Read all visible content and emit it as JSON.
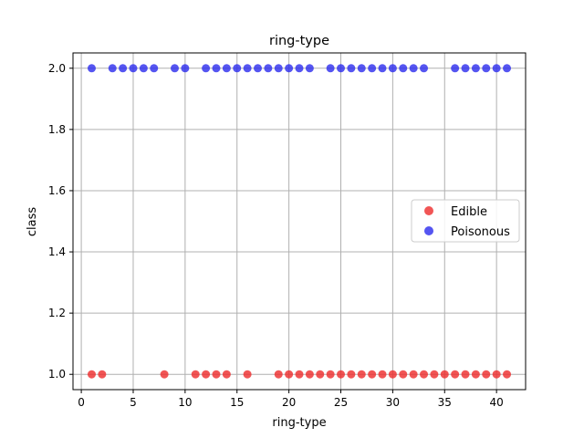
{
  "chart_data": {
    "type": "scatter",
    "title": "ring-type",
    "xlabel": "ring-type",
    "ylabel": "class",
    "xlim": [
      -0.8,
      42.8
    ],
    "ylim": [
      0.95,
      2.05
    ],
    "xticks": [
      0,
      5,
      10,
      15,
      20,
      25,
      30,
      35,
      40
    ],
    "yticks": [
      1.0,
      1.2,
      1.4,
      1.6,
      1.8,
      2.0
    ],
    "xtick_labels": [
      "0",
      "5",
      "10",
      "15",
      "20",
      "25",
      "30",
      "35",
      "40"
    ],
    "ytick_labels": [
      "1.0",
      "1.2",
      "1.4",
      "1.6",
      "1.8",
      "2.0"
    ],
    "grid": true,
    "legend_position": "center-right",
    "series": [
      {
        "name": "Edible",
        "color": "#ee2a2a",
        "y": 1.0,
        "x": [
          1,
          2,
          8,
          11,
          12,
          13,
          14,
          16,
          19,
          20,
          21,
          22,
          23,
          24,
          25,
          26,
          27,
          28,
          29,
          30,
          31,
          32,
          33,
          34,
          35,
          36,
          37,
          38,
          39,
          40,
          41
        ]
      },
      {
        "name": "Poisonous",
        "color": "#2a2aee",
        "y": 2.0,
        "x": [
          1,
          3,
          4,
          5,
          6,
          7,
          9,
          10,
          12,
          13,
          14,
          15,
          16,
          17,
          18,
          19,
          20,
          21,
          22,
          24,
          25,
          26,
          27,
          28,
          29,
          30,
          31,
          32,
          33,
          36,
          37,
          38,
          39,
          40,
          41
        ]
      }
    ]
  }
}
